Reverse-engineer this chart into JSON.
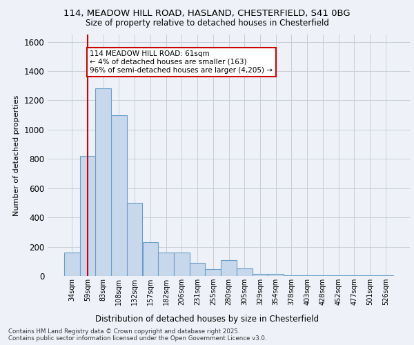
{
  "title_line1": "114, MEADOW HILL ROAD, HASLAND, CHESTERFIELD, S41 0BG",
  "title_line2": "Size of property relative to detached houses in Chesterfield",
  "xlabel": "Distribution of detached houses by size in Chesterfield",
  "ylabel": "Number of detached properties",
  "categories": [
    "34sqm",
    "59sqm",
    "83sqm",
    "108sqm",
    "132sqm",
    "157sqm",
    "182sqm",
    "206sqm",
    "231sqm",
    "255sqm",
    "280sqm",
    "305sqm",
    "329sqm",
    "354sqm",
    "378sqm",
    "403sqm",
    "428sqm",
    "452sqm",
    "477sqm",
    "501sqm",
    "526sqm"
  ],
  "values": [
    160,
    820,
    1280,
    1100,
    500,
    230,
    160,
    160,
    90,
    45,
    110,
    50,
    15,
    12,
    7,
    4,
    4,
    3,
    3,
    3,
    3
  ],
  "bar_color": "#c8d8ec",
  "bar_edge_color": "#6a9ec8",
  "vline_x": 1,
  "vline_color": "#cc0000",
  "annotation_text": "114 MEADOW HILL ROAD: 61sqm\n← 4% of detached houses are smaller (163)\n96% of semi-detached houses are larger (4,205) →",
  "annotation_box_color": "#ffffff",
  "annotation_box_edge": "#cc0000",
  "ylim": [
    0,
    1650
  ],
  "yticks": [
    0,
    200,
    400,
    600,
    800,
    1000,
    1200,
    1400,
    1600
  ],
  "grid_color": "#c8ccd8",
  "background_color": "#eef2f8",
  "footer": "Contains HM Land Registry data © Crown copyright and database right 2025.\nContains public sector information licensed under the Open Government Licence v3.0."
}
